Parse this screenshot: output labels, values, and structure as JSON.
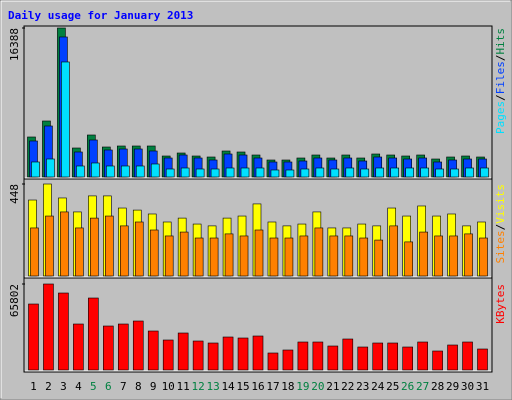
{
  "chart_data": [
    {
      "type": "bar",
      "title": "Daily usage for January 2013",
      "categories": [
        "1",
        "2",
        "3",
        "4",
        "5",
        "6",
        "7",
        "8",
        "9",
        "10",
        "11",
        "12",
        "13",
        "14",
        "15",
        "16",
        "17",
        "18",
        "19",
        "20",
        "21",
        "22",
        "23",
        "24",
        "25",
        "26",
        "27",
        "28",
        "29",
        "30",
        "31"
      ],
      "ylim": [
        0,
        16388
      ],
      "yticks": [
        16388
      ],
      "series": [
        {
          "name": "Hits",
          "color": "#008040",
          "values": [
            4400,
            6160,
            16388,
            3190,
            4620,
            3300,
            3410,
            3410,
            3410,
            2310,
            2640,
            2310,
            2200,
            2860,
            2750,
            2420,
            1870,
            1870,
            2090,
            2420,
            2090,
            2420,
            2090,
            2530,
            2420,
            2310,
            2420,
            1980,
            2200,
            2310,
            2200
          ]
        },
        {
          "name": "Files",
          "color": "#0040ff",
          "values": [
            3960,
            5610,
            15400,
            2750,
            4070,
            2970,
            3080,
            3080,
            2860,
            2090,
            2420,
            2090,
            1870,
            2530,
            2420,
            2090,
            1650,
            1650,
            1760,
            2090,
            1870,
            2090,
            1760,
            2200,
            2090,
            1980,
            2090,
            1650,
            1870,
            1980,
            1980
          ]
        },
        {
          "name": "Pages",
          "color": "#00e0ff",
          "values": [
            1650,
            1980,
            12650,
            1210,
            1540,
            1210,
            1210,
            1210,
            1430,
            880,
            990,
            880,
            880,
            990,
            990,
            990,
            770,
            770,
            880,
            990,
            880,
            990,
            880,
            990,
            990,
            990,
            990,
            880,
            880,
            990,
            990
          ]
        }
      ]
    },
    {
      "type": "bar",
      "ylim": [
        0,
        448
      ],
      "yticks": [
        448
      ],
      "series": [
        {
          "name": "Visits",
          "color": "#ffff00",
          "values": [
            370,
            448,
            380,
            312,
            390,
            390,
            331,
            321,
            302,
            263,
            282,
            253,
            244,
            282,
            292,
            351,
            263,
            244,
            253,
            312,
            234,
            234,
            253,
            244,
            331,
            292,
            341,
            292,
            302,
            244,
            263
          ]
        },
        {
          "name": "Sites",
          "color": "#ff8000",
          "values": [
            234,
            292,
            312,
            234,
            282,
            292,
            244,
            263,
            224,
            195,
            214,
            185,
            185,
            205,
            195,
            224,
            185,
            185,
            195,
            234,
            195,
            195,
            185,
            175,
            244,
            166,
            214,
            195,
            195,
            205,
            185
          ]
        }
      ]
    },
    {
      "type": "bar",
      "categories": [
        "1",
        "2",
        "3",
        "4",
        "5",
        "6",
        "7",
        "8",
        "9",
        "10",
        "11",
        "12",
        "13",
        "14",
        "15",
        "16",
        "17",
        "18",
        "19",
        "20",
        "21",
        "22",
        "23",
        "24",
        "25",
        "26",
        "27",
        "28",
        "29",
        "30",
        "31"
      ],
      "category_colors": [
        "#000",
        "#000",
        "#000",
        "#000",
        "#008040",
        "#008040",
        "#000",
        "#000",
        "#000",
        "#000",
        "#000",
        "#008040",
        "#008040",
        "#000",
        "#000",
        "#000",
        "#000",
        "#000",
        "#008040",
        "#008040",
        "#000",
        "#000",
        "#000",
        "#000",
        "#000",
        "#008040",
        "#008040",
        "#000",
        "#000",
        "#000",
        "#000"
      ],
      "ylim": [
        0,
        65802
      ],
      "yticks": [
        65802
      ],
      "series": [
        {
          "name": "KBytes",
          "color": "#ff0000",
          "values": [
            50490,
            65802,
            58905,
            35190,
            55080,
            33660,
            35190,
            37485,
            29835,
            22950,
            28305,
            22185,
            20655,
            25245,
            24480,
            26010,
            13005,
            15300,
            21420,
            21420,
            18360,
            23715,
            17595,
            20655,
            20655,
            17595,
            21420,
            14535,
            19125,
            21420,
            16065
          ]
        }
      ]
    }
  ]
}
